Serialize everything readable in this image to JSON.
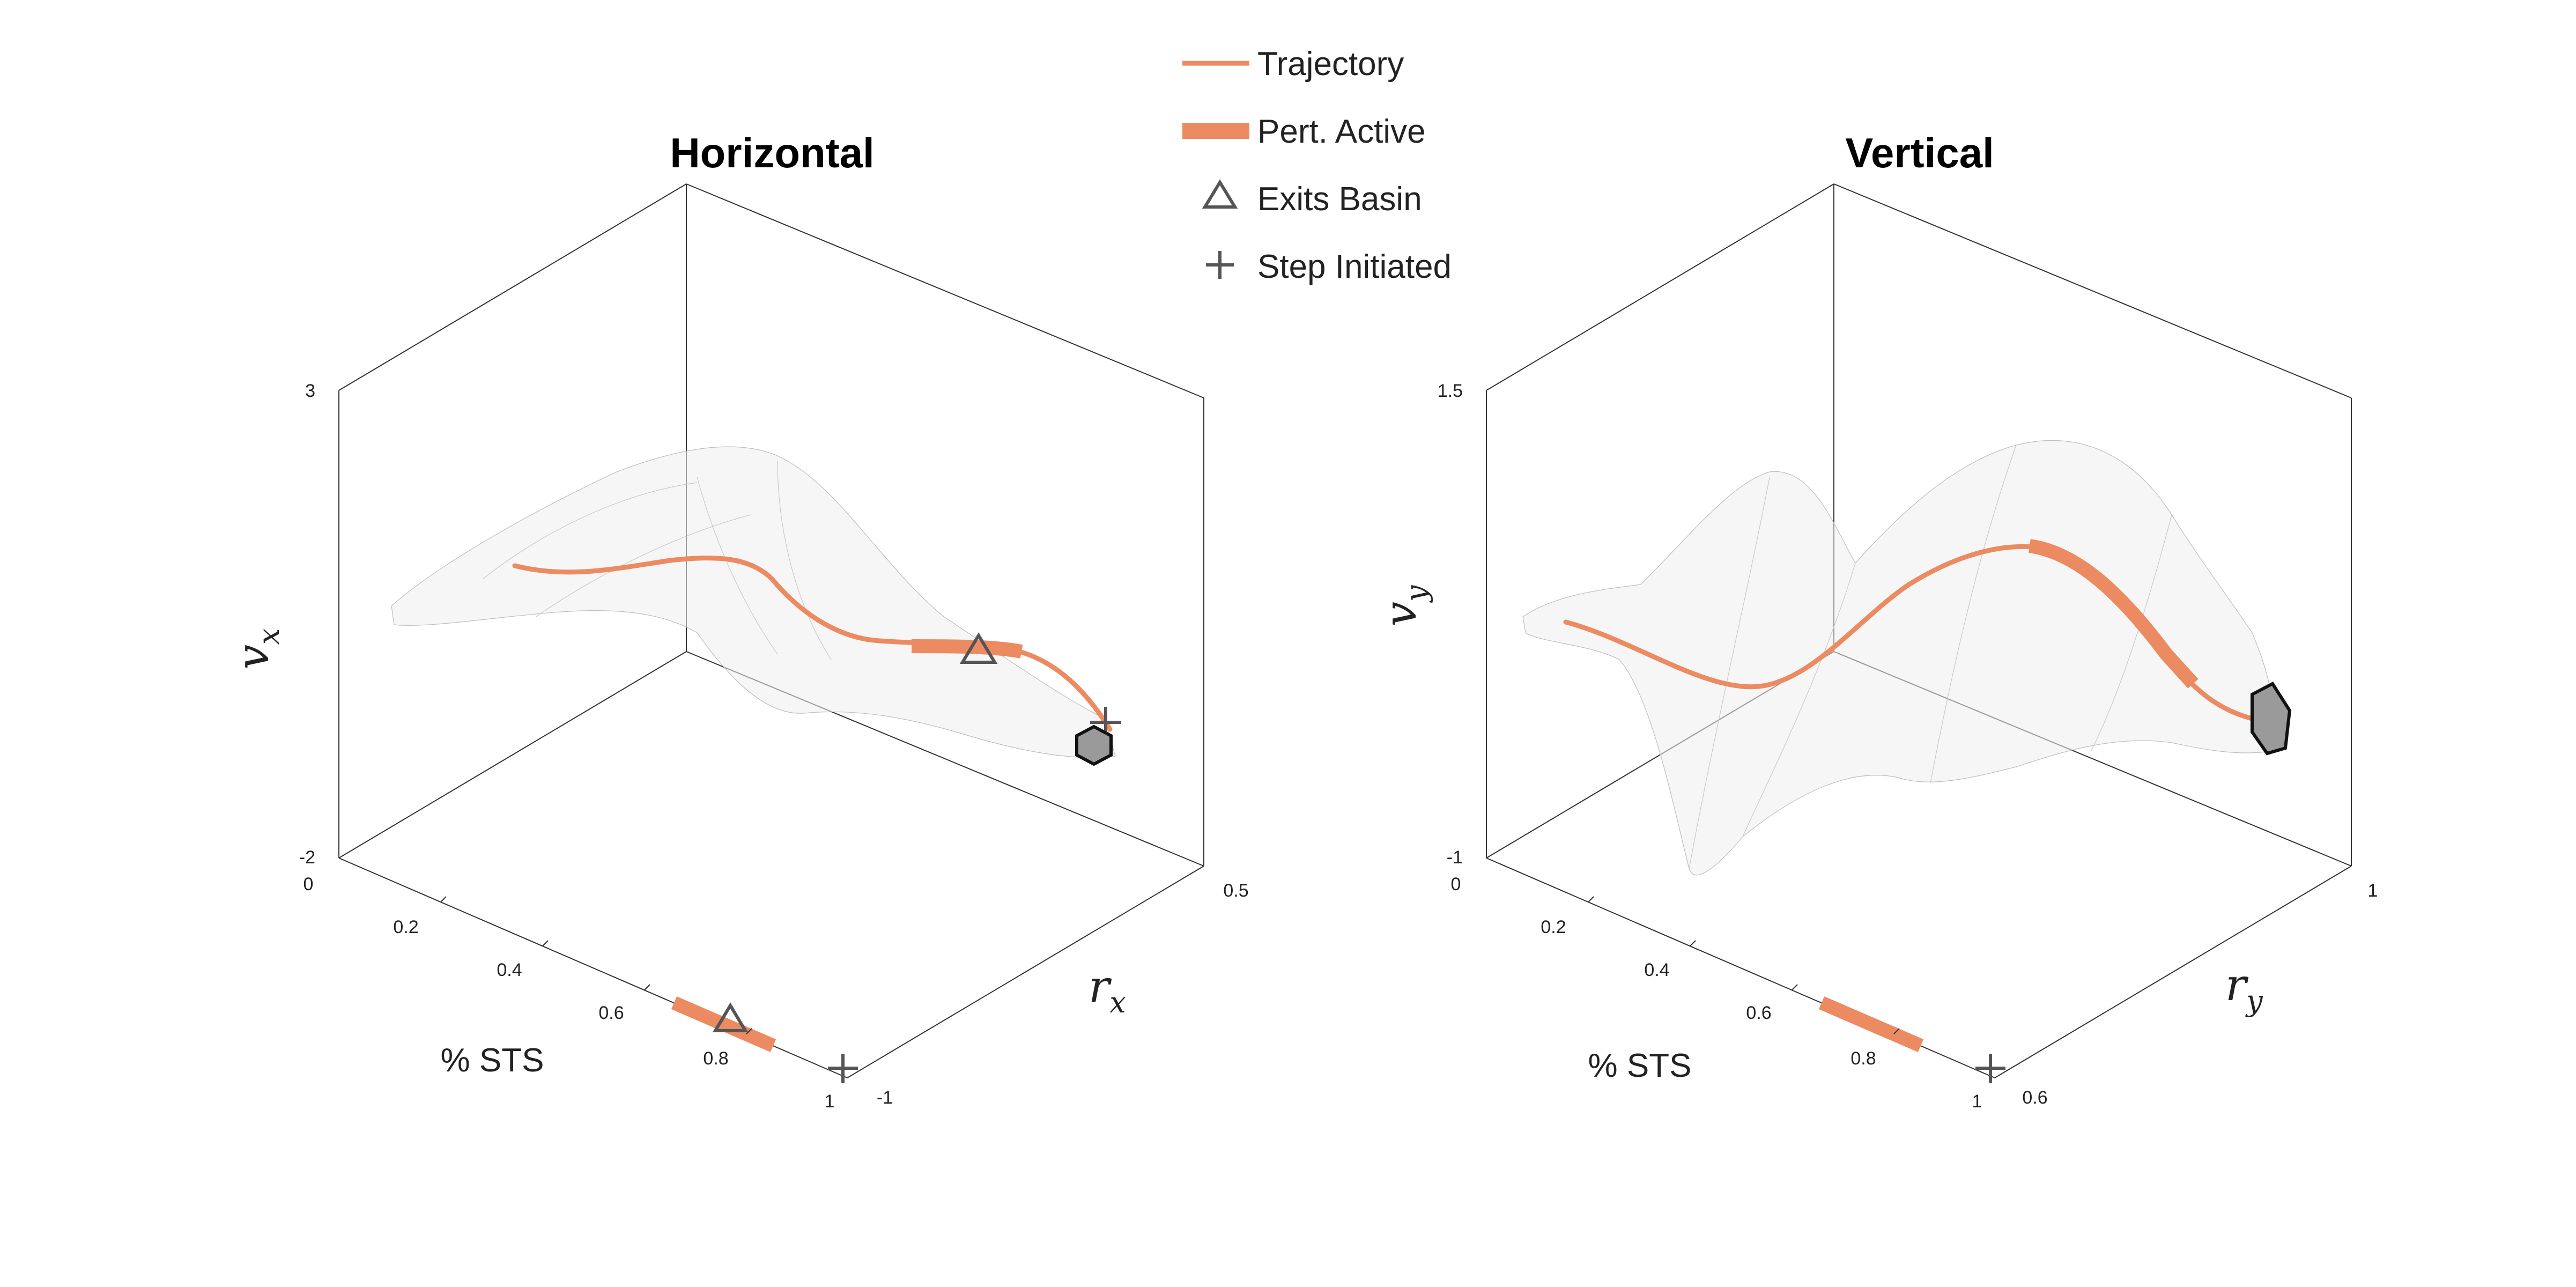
{
  "legend": {
    "trajectory": "Trajectory",
    "pert_active": "Pert. Active",
    "exits_basin": "Exits Basin",
    "step_initiated": "Step Initiated"
  },
  "colors": {
    "trajectory": "#ec8a62",
    "mesh": "#bdbdbd",
    "marker": "#555555",
    "final_state": "#9a9a9a"
  },
  "chart_data": [
    {
      "type": "line",
      "title": "Horizontal",
      "xlabel": "% STS",
      "ylabel_base": "r",
      "ylabel_sub": "x",
      "zlabel_base": "v",
      "zlabel_sub": "x",
      "x_ticks": [
        "0",
        "0.2",
        "0.4",
        "0.6",
        "0.8",
        "1"
      ],
      "y_ticks": [
        "-1",
        "0.5"
      ],
      "z_ticks": [
        "-2",
        "3"
      ],
      "xlim": [
        0,
        1
      ],
      "ylim": [
        -1,
        0.5
      ],
      "zlim": [
        -2,
        3
      ],
      "pert_active_range": [
        0.73,
        0.84
      ],
      "exits_basin_x": 0.78,
      "step_initiated_x": 0.98,
      "series": [
        {
          "values": [
            [
              0.05,
              -0.55,
              1.2
            ],
            [
              0.15,
              -0.35,
              1.15
            ],
            [
              0.3,
              -0.2,
              1.3
            ],
            [
              0.45,
              0.05,
              1.05
            ],
            [
              0.6,
              0.1,
              0.85
            ],
            [
              0.73,
              0.0,
              1.25
            ],
            [
              0.78,
              0.1,
              1.25
            ],
            [
              0.84,
              0.1,
              1.3
            ],
            [
              0.92,
              0.25,
              0.95
            ],
            [
              0.97,
              0.35,
              0.55
            ]
          ]
        }
      ]
    },
    {
      "type": "line",
      "title": "Vertical",
      "xlabel": "% STS",
      "ylabel_base": "r",
      "ylabel_sub": "y",
      "zlabel_base": "v",
      "zlabel_sub": "y",
      "x_ticks": [
        "0",
        "0.2",
        "0.4",
        "0.6",
        "0.8",
        "1"
      ],
      "y_ticks": [
        "0.6",
        "1"
      ],
      "z_ticks": [
        "-1",
        "1.5"
      ],
      "xlim": [
        0,
        1
      ],
      "ylim": [
        0.6,
        1
      ],
      "zlim": [
        -1,
        1.5
      ],
      "pert_active_range": [
        0.73,
        0.84
      ],
      "step_initiated_x": 0.98,
      "series": [
        {
          "values": [
            [
              0.05,
              0.68,
              0.52
            ],
            [
              0.2,
              0.7,
              0.42
            ],
            [
              0.35,
              0.76,
              0.48
            ],
            [
              0.5,
              0.8,
              0.82
            ],
            [
              0.62,
              0.84,
              0.98
            ],
            [
              0.73,
              0.86,
              1.0
            ],
            [
              0.8,
              0.88,
              0.82
            ],
            [
              0.86,
              0.9,
              0.52
            ],
            [
              0.94,
              0.95,
              0.38
            ],
            [
              0.98,
              0.96,
              0.28
            ]
          ]
        }
      ]
    }
  ]
}
